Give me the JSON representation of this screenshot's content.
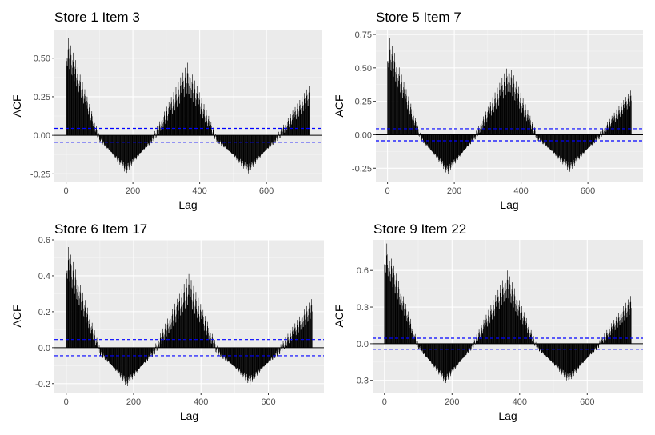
{
  "chart_data": [
    {
      "type": "bar",
      "title": "Store 1 Item 3",
      "xlabel": "Lag",
      "ylabel": "ACF",
      "xlim": [
        -35,
        765
      ],
      "ylim": [
        -0.3,
        0.68
      ],
      "xticks": [
        0,
        200,
        400,
        600
      ],
      "yticks": [
        -0.25,
        0.0,
        0.25,
        0.5
      ],
      "ytick_labels": [
        "-0.25",
        "0.00",
        "0.25",
        "0.50"
      ],
      "conf_bound": 0.045,
      "grid": true,
      "lags_max": 730,
      "weekly_period": 7,
      "envelope_peaks": [
        [
          0,
          0.5
        ],
        [
          7,
          0.63
        ],
        [
          100,
          0.0
        ],
        [
          180,
          -0.25
        ],
        [
          260,
          0.0
        ],
        [
          364,
          0.47
        ],
        [
          450,
          0.0
        ],
        [
          545,
          -0.25
        ],
        [
          630,
          0.0
        ],
        [
          728,
          0.32
        ]
      ],
      "envelope_floor": [
        [
          0,
          0.45
        ],
        [
          100,
          -0.05
        ],
        [
          180,
          -0.18
        ],
        [
          260,
          -0.05
        ],
        [
          364,
          0.25
        ],
        [
          450,
          -0.05
        ],
        [
          545,
          -0.18
        ],
        [
          630,
          -0.05
        ],
        [
          728,
          0.18
        ]
      ]
    },
    {
      "type": "bar",
      "title": "Store 5 Item 7",
      "xlabel": "Lag",
      "ylabel": "ACF",
      "xlim": [
        -35,
        765
      ],
      "ylim": [
        -0.35,
        0.78
      ],
      "xticks": [
        0,
        200,
        400,
        600
      ],
      "yticks": [
        -0.25,
        0.0,
        0.25,
        0.5,
        0.75
      ],
      "ytick_labels": [
        "-0.25",
        "0.00",
        "0.25",
        "0.50",
        "0.75"
      ],
      "conf_bound": 0.045,
      "grid": true,
      "lags_max": 730,
      "weekly_period": 7,
      "envelope_peaks": [
        [
          0,
          0.55
        ],
        [
          7,
          0.72
        ],
        [
          100,
          0.0
        ],
        [
          180,
          -0.3
        ],
        [
          260,
          0.0
        ],
        [
          364,
          0.53
        ],
        [
          450,
          0.0
        ],
        [
          545,
          -0.28
        ],
        [
          630,
          0.0
        ],
        [
          728,
          0.33
        ]
      ],
      "envelope_floor": [
        [
          0,
          0.5
        ],
        [
          100,
          -0.05
        ],
        [
          180,
          -0.22
        ],
        [
          260,
          -0.05
        ],
        [
          364,
          0.3
        ],
        [
          450,
          -0.05
        ],
        [
          545,
          -0.2
        ],
        [
          630,
          -0.05
        ],
        [
          728,
          0.2
        ]
      ]
    },
    {
      "type": "bar",
      "title": "Store 6 Item 17",
      "xlabel": "Lag",
      "ylabel": "ACF",
      "xlim": [
        -35,
        765
      ],
      "ylim": [
        -0.25,
        0.6
      ],
      "xticks": [
        0,
        200,
        400,
        600
      ],
      "yticks": [
        -0.2,
        0.0,
        0.2,
        0.4,
        0.6
      ],
      "ytick_labels": [
        "-0.2",
        "0.0",
        "0.2",
        "0.4",
        "0.6"
      ],
      "conf_bound": 0.045,
      "grid": true,
      "lags_max": 730,
      "weekly_period": 7,
      "envelope_peaks": [
        [
          0,
          0.43
        ],
        [
          7,
          0.56
        ],
        [
          100,
          0.0
        ],
        [
          180,
          -0.22
        ],
        [
          260,
          0.0
        ],
        [
          364,
          0.41
        ],
        [
          450,
          0.0
        ],
        [
          545,
          -0.21
        ],
        [
          630,
          0.0
        ],
        [
          728,
          0.27
        ]
      ],
      "envelope_floor": [
        [
          0,
          0.38
        ],
        [
          100,
          -0.05
        ],
        [
          180,
          -0.16
        ],
        [
          260,
          -0.05
        ],
        [
          364,
          0.22
        ],
        [
          450,
          -0.05
        ],
        [
          545,
          -0.15
        ],
        [
          630,
          -0.05
        ],
        [
          728,
          0.15
        ]
      ]
    },
    {
      "type": "bar",
      "title": "Store 9 Item 22",
      "xlabel": "Lag",
      "ylabel": "ACF",
      "xlim": [
        -35,
        765
      ],
      "ylim": [
        -0.4,
        0.85
      ],
      "xticks": [
        0,
        200,
        400,
        600
      ],
      "yticks": [
        -0.3,
        0.0,
        0.3,
        0.6
      ],
      "ytick_labels": [
        "-0.3",
        "0.0",
        "0.3",
        "0.6"
      ],
      "conf_bound": 0.045,
      "grid": true,
      "lags_max": 730,
      "weekly_period": 7,
      "envelope_peaks": [
        [
          0,
          0.65
        ],
        [
          7,
          0.82
        ],
        [
          100,
          0.0
        ],
        [
          180,
          -0.33
        ],
        [
          260,
          0.0
        ],
        [
          364,
          0.6
        ],
        [
          450,
          0.0
        ],
        [
          545,
          -0.32
        ],
        [
          630,
          0.0
        ],
        [
          728,
          0.39
        ]
      ],
      "envelope_floor": [
        [
          0,
          0.58
        ],
        [
          100,
          -0.05
        ],
        [
          180,
          -0.25
        ],
        [
          260,
          -0.05
        ],
        [
          364,
          0.35
        ],
        [
          450,
          -0.05
        ],
        [
          545,
          -0.24
        ],
        [
          630,
          -0.05
        ],
        [
          728,
          0.22
        ]
      ]
    }
  ],
  "colors": {
    "panel_background": "#ebebeb",
    "grid_major": "#ffffff",
    "grid_minor": "#f5f5f5",
    "bars": "#000000",
    "conf_line": "#0000ff",
    "zero_line": "#000000"
  }
}
